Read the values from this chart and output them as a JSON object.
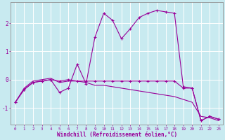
{
  "xlabel": "Windchill (Refroidissement éolien,°C)",
  "background_color": "#c8eaf0",
  "line_color": "#990099",
  "grid_color": "#ffffff",
  "hours": [
    0,
    1,
    2,
    3,
    4,
    5,
    6,
    7,
    8,
    9,
    10,
    11,
    12,
    13,
    14,
    15,
    16,
    17,
    18,
    19,
    20,
    21,
    22,
    23
  ],
  "temp_line1": [
    -0.8,
    -0.35,
    -0.1,
    -0.05,
    0.0,
    -0.45,
    -0.3,
    0.55,
    -0.15,
    1.5,
    2.35,
    2.1,
    1.45,
    1.8,
    2.2,
    2.35,
    2.45,
    2.4,
    2.35,
    -0.25,
    -0.3,
    -1.45,
    -1.3,
    -1.4
  ],
  "temp_line2": [
    -0.8,
    -0.35,
    -0.1,
    -0.05,
    0.0,
    -0.05,
    0.0,
    -0.05,
    -0.05,
    -0.05,
    -0.05,
    -0.05,
    -0.05,
    -0.05,
    -0.05,
    -0.05,
    -0.05,
    -0.05,
    -0.05,
    -0.3,
    -0.3,
    -1.45,
    -1.3,
    -1.4
  ],
  "temp_line3": [
    -0.8,
    -0.3,
    -0.05,
    0.0,
    0.05,
    -0.1,
    -0.05,
    -0.05,
    -0.1,
    -0.2,
    -0.2,
    -0.25,
    -0.3,
    -0.35,
    -0.4,
    -0.45,
    -0.5,
    -0.55,
    -0.6,
    -0.7,
    -0.8,
    -1.3,
    -1.35,
    -1.45
  ],
  "ylim": [
    -1.6,
    2.75
  ],
  "xlim": [
    -0.5,
    23.5
  ],
  "yticks": [
    -1,
    0,
    1,
    2
  ],
  "xtick_labels": [
    "0",
    "1",
    "2",
    "3",
    "4",
    "5",
    "6",
    "7",
    "8",
    "9",
    "10",
    "11",
    "12",
    "13",
    "14",
    "15",
    "16",
    "17",
    "18",
    "19",
    "20",
    "21",
    "22",
    "23"
  ]
}
